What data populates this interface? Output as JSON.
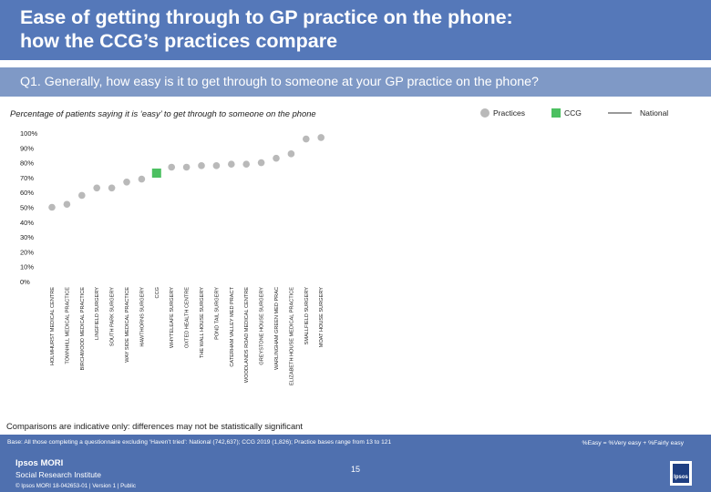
{
  "header": {
    "title_line1": "Ease of getting through to GP practice on the phone:",
    "title_line2": "how the CCG’s practices compare"
  },
  "question": "Q1. Generally, how easy is it to get through to someone at your GP practice on the phone?",
  "subtitle": "Percentage of patients saying it is ‘easy’ to get through to someone on the phone",
  "legend": {
    "practices": "Practices",
    "ccg": "CCG",
    "national": "National"
  },
  "colors": {
    "practice": "#b9b9b9",
    "ccg": "#4cc061",
    "national": "#999999",
    "header": "#5578b9",
    "footer": "#4f70af"
  },
  "chart_data": {
    "type": "scatter",
    "title": "Percentage of patients saying it is ‘easy’ to get through to someone on the phone",
    "ylim": [
      0,
      100
    ],
    "yticks": [
      "0%",
      "10%",
      "20%",
      "30%",
      "40%",
      "50%",
      "60%",
      "70%",
      "80%",
      "90%",
      "100%"
    ],
    "grid": false,
    "legend_position": "top-right",
    "categories": [
      "HOLMHURST MEDICAL CENTRE",
      "TOWNHILL MEDICAL PRACTICE",
      "BIRCHWOOD MEDICAL PRACTICE",
      "LINGFIELD SURGERY",
      "SOUTH PARK SURGERY",
      "WAY SIDE MEDICAL PRACTICE",
      "HAWTHORNS SURGERY",
      "CCG",
      "WHYTELEAFE SURGERY",
      "OXTED HEALTH CENTRE",
      "THE WALL HOUSE SURGERY",
      "POND TAIL SURGERY",
      "CATERHAM VALLEY MED PRACT",
      "WOODLANDS ROAD MEDICAL CENTRE",
      "GREYSTONE HOUSE SURGERY",
      "WARLINGHAM GREEN MED PRAC",
      "ELIZABETH HOUSE MEDICAL PRACTICE",
      "SMALLFIELD SURGERY",
      "MOAT HOUSE SURGERY"
    ],
    "values": [
      50,
      52,
      58,
      63,
      63,
      67,
      69,
      73,
      77,
      77,
      78,
      78,
      79,
      79,
      80,
      83,
      86,
      96,
      97
    ],
    "ccg_index": 7,
    "series": [
      {
        "name": "Practices",
        "kind": "dot"
      },
      {
        "name": "CCG",
        "kind": "square"
      }
    ]
  },
  "note": "Comparisons are indicative only: differences may not be statistically significant",
  "footer": {
    "base": "Base: All those completing a questionnaire excluding ‘Haven’t tried’: National (742,637); CCG 2019 (1,826); Practice bases range from 13 to 121",
    "easy_def": "%Easy = %Very easy + %Fairly easy",
    "brand": "Ipsos MORI",
    "brand_sub": "Social Research Institute",
    "copyright": "© Ipsos MORI 18-042653-01 | Version 1 | Public",
    "page_number": "15",
    "logo_text": "Ipsos"
  }
}
